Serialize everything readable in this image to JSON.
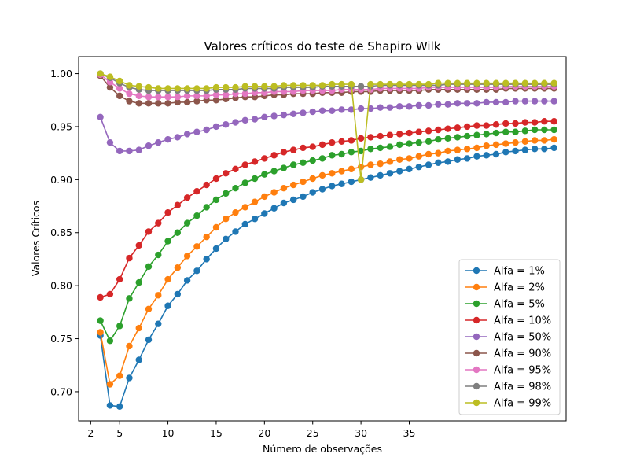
{
  "chart_data": {
    "type": "line",
    "title": "Valores críticos do teste de Shapiro Wilk",
    "xlabel": "Número de observações",
    "ylabel": "Valores Críticos",
    "xlim": [
      0.75,
      51.25
    ],
    "ylim": [
      0.6725,
      1.016
    ],
    "x_ticks": [
      2,
      5,
      10,
      15,
      20,
      25,
      30,
      35
    ],
    "y_ticks": [
      0.7,
      0.75,
      0.8,
      0.85,
      0.9,
      0.95,
      1.0
    ],
    "y_tick_labels": [
      "0.70",
      "0.75",
      "0.80",
      "0.85",
      "0.90",
      "0.95",
      "1.00"
    ],
    "grid": false,
    "legend_position": "lower-right",
    "x": [
      3,
      4,
      5,
      6,
      7,
      8,
      9,
      10,
      11,
      12,
      13,
      14,
      15,
      16,
      17,
      18,
      19,
      20,
      21,
      22,
      23,
      24,
      25,
      26,
      27,
      28,
      29,
      30,
      31,
      32,
      33,
      34,
      35,
      36,
      37,
      38,
      39,
      40,
      41,
      42,
      43,
      44,
      45,
      46,
      47,
      48,
      49,
      50
    ],
    "series": [
      {
        "name": "Alfa = 1%",
        "color": "#1f77b4",
        "values": [
          0.753,
          0.687,
          0.686,
          0.713,
          0.73,
          0.749,
          0.764,
          0.781,
          0.792,
          0.805,
          0.814,
          0.825,
          0.835,
          0.844,
          0.851,
          0.858,
          0.863,
          0.868,
          0.873,
          0.878,
          0.881,
          0.884,
          0.888,
          0.891,
          0.894,
          0.896,
          0.898,
          0.9,
          0.902,
          0.904,
          0.906,
          0.908,
          0.91,
          0.912,
          0.914,
          0.916,
          0.917,
          0.919,
          0.92,
          0.922,
          0.923,
          0.924,
          0.926,
          0.927,
          0.928,
          0.929,
          0.929,
          0.93
        ]
      },
      {
        "name": "Alfa = 2%",
        "color": "#ff7f0e",
        "values": [
          0.756,
          0.707,
          0.715,
          0.743,
          0.76,
          0.778,
          0.791,
          0.806,
          0.817,
          0.828,
          0.837,
          0.846,
          0.855,
          0.863,
          0.869,
          0.874,
          0.879,
          0.884,
          0.888,
          0.892,
          0.895,
          0.898,
          0.901,
          0.904,
          0.906,
          0.908,
          0.91,
          0.912,
          0.914,
          0.915,
          0.917,
          0.919,
          0.92,
          0.922,
          0.924,
          0.925,
          0.927,
          0.928,
          0.929,
          0.93,
          0.932,
          0.933,
          0.934,
          0.935,
          0.936,
          0.937,
          0.937,
          0.938
        ]
      },
      {
        "name": "Alfa = 5%",
        "color": "#2ca02c",
        "values": [
          0.767,
          0.748,
          0.762,
          0.788,
          0.803,
          0.818,
          0.829,
          0.842,
          0.85,
          0.859,
          0.866,
          0.874,
          0.881,
          0.887,
          0.892,
          0.897,
          0.901,
          0.905,
          0.908,
          0.911,
          0.914,
          0.916,
          0.918,
          0.92,
          0.923,
          0.924,
          0.926,
          0.927,
          0.929,
          0.93,
          0.931,
          0.933,
          0.934,
          0.935,
          0.936,
          0.938,
          0.939,
          0.94,
          0.941,
          0.942,
          0.943,
          0.944,
          0.945,
          0.945,
          0.946,
          0.947,
          0.947,
          0.947
        ]
      },
      {
        "name": "Alfa = 10%",
        "color": "#d62728",
        "values": [
          0.789,
          0.792,
          0.806,
          0.826,
          0.838,
          0.851,
          0.859,
          0.869,
          0.876,
          0.883,
          0.889,
          0.895,
          0.901,
          0.906,
          0.91,
          0.914,
          0.917,
          0.92,
          0.923,
          0.926,
          0.928,
          0.93,
          0.931,
          0.933,
          0.935,
          0.936,
          0.937,
          0.939,
          0.94,
          0.941,
          0.942,
          0.943,
          0.944,
          0.945,
          0.946,
          0.947,
          0.948,
          0.949,
          0.95,
          0.951,
          0.951,
          0.952,
          0.953,
          0.953,
          0.954,
          0.954,
          0.955,
          0.955
        ]
      },
      {
        "name": "Alfa = 50%",
        "color": "#9467bd",
        "values": [
          0.959,
          0.935,
          0.927,
          0.927,
          0.928,
          0.932,
          0.935,
          0.938,
          0.94,
          0.943,
          0.945,
          0.947,
          0.95,
          0.952,
          0.954,
          0.956,
          0.957,
          0.959,
          0.96,
          0.961,
          0.962,
          0.963,
          0.964,
          0.965,
          0.965,
          0.966,
          0.966,
          0.967,
          0.967,
          0.968,
          0.968,
          0.969,
          0.969,
          0.97,
          0.97,
          0.971,
          0.971,
          0.972,
          0.972,
          0.972,
          0.973,
          0.973,
          0.973,
          0.974,
          0.974,
          0.974,
          0.974,
          0.974
        ]
      },
      {
        "name": "Alfa = 90%",
        "color": "#8c564b",
        "values": [
          0.998,
          0.987,
          0.979,
          0.974,
          0.972,
          0.972,
          0.972,
          0.972,
          0.973,
          0.973,
          0.974,
          0.975,
          0.975,
          0.976,
          0.977,
          0.978,
          0.978,
          0.979,
          0.98,
          0.98,
          0.981,
          0.981,
          0.981,
          0.982,
          0.982,
          0.982,
          0.983,
          0.983,
          0.983,
          0.984,
          0.984,
          0.984,
          0.984,
          0.984,
          0.985,
          0.985,
          0.985,
          0.985,
          0.985,
          0.985,
          0.985,
          0.985,
          0.986,
          0.986,
          0.986,
          0.986,
          0.986,
          0.986
        ]
      },
      {
        "name": "Alfa = 95%",
        "color": "#e377c2",
        "values": [
          0.999,
          0.992,
          0.986,
          0.981,
          0.979,
          0.978,
          0.978,
          0.978,
          0.978,
          0.979,
          0.979,
          0.979,
          0.98,
          0.98,
          0.981,
          0.981,
          0.982,
          0.982,
          0.983,
          0.983,
          0.983,
          0.984,
          0.984,
          0.984,
          0.984,
          0.985,
          0.985,
          0.985,
          0.985,
          0.986,
          0.986,
          0.986,
          0.986,
          0.986,
          0.987,
          0.987,
          0.987,
          0.987,
          0.987,
          0.987,
          0.987,
          0.987,
          0.988,
          0.988,
          0.988,
          0.988,
          0.988,
          0.988
        ]
      },
      {
        "name": "Alfa = 98%",
        "color": "#7f7f7f",
        "values": [
          1.0,
          0.996,
          0.991,
          0.987,
          0.985,
          0.984,
          0.984,
          0.984,
          0.984,
          0.984,
          0.984,
          0.984,
          0.985,
          0.985,
          0.985,
          0.986,
          0.986,
          0.986,
          0.986,
          0.987,
          0.987,
          0.987,
          0.987,
          0.988,
          0.988,
          0.988,
          0.988,
          0.988,
          0.988,
          0.989,
          0.989,
          0.989,
          0.989,
          0.989,
          0.989,
          0.989,
          0.99,
          0.99,
          0.99,
          0.99,
          0.99,
          0.99,
          0.99,
          0.99,
          0.99,
          0.99,
          0.99,
          0.99
        ]
      },
      {
        "name": "Alfa = 99%",
        "color": "#bcbd22",
        "values": [
          1.0,
          0.997,
          0.993,
          0.989,
          0.988,
          0.987,
          0.986,
          0.986,
          0.986,
          0.986,
          0.986,
          0.986,
          0.987,
          0.987,
          0.987,
          0.988,
          0.988,
          0.988,
          0.988,
          0.989,
          0.989,
          0.989,
          0.989,
          0.989,
          0.99,
          0.99,
          0.99,
          0.9,
          0.99,
          0.99,
          0.99,
          0.99,
          0.99,
          0.99,
          0.99,
          0.991,
          0.991,
          0.991,
          0.991,
          0.991,
          0.991,
          0.991,
          0.991,
          0.991,
          0.991,
          0.991,
          0.991,
          0.991
        ]
      }
    ]
  }
}
